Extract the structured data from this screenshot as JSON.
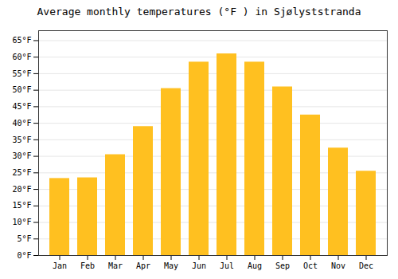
{
  "chart_data": {
    "type": "bar",
    "title": "Average monthly temperatures (°F ) in Sjølyststranda",
    "categories": [
      "Jan",
      "Feb",
      "Mar",
      "Apr",
      "May",
      "Jun",
      "Jul",
      "Aug",
      "Sep",
      "Oct",
      "Nov",
      "Dec"
    ],
    "values": [
      23.3,
      23.5,
      30.5,
      39.0,
      50.5,
      58.5,
      61.0,
      58.5,
      51.0,
      42.5,
      32.5,
      25.5
    ],
    "color": "#FFC020",
    "ylim": [
      0,
      68
    ],
    "yticks": [
      {
        "value": 0,
        "label": "0°F"
      },
      {
        "value": 5,
        "label": "5°F"
      },
      {
        "value": 10,
        "label": "10°F"
      },
      {
        "value": 15,
        "label": "15°F"
      },
      {
        "value": 20,
        "label": "20°F"
      },
      {
        "value": 25,
        "label": "25°F"
      },
      {
        "value": 30,
        "label": "30°F"
      },
      {
        "value": 35,
        "label": "35°F"
      },
      {
        "value": 40,
        "label": "40°F"
      },
      {
        "value": 45,
        "label": "45°F"
      },
      {
        "value": 50,
        "label": "50°F"
      },
      {
        "value": 55,
        "label": "55°F"
      },
      {
        "value": 60,
        "label": "60°F"
      },
      {
        "value": 65,
        "label": "65°F"
      }
    ],
    "grid": true
  }
}
